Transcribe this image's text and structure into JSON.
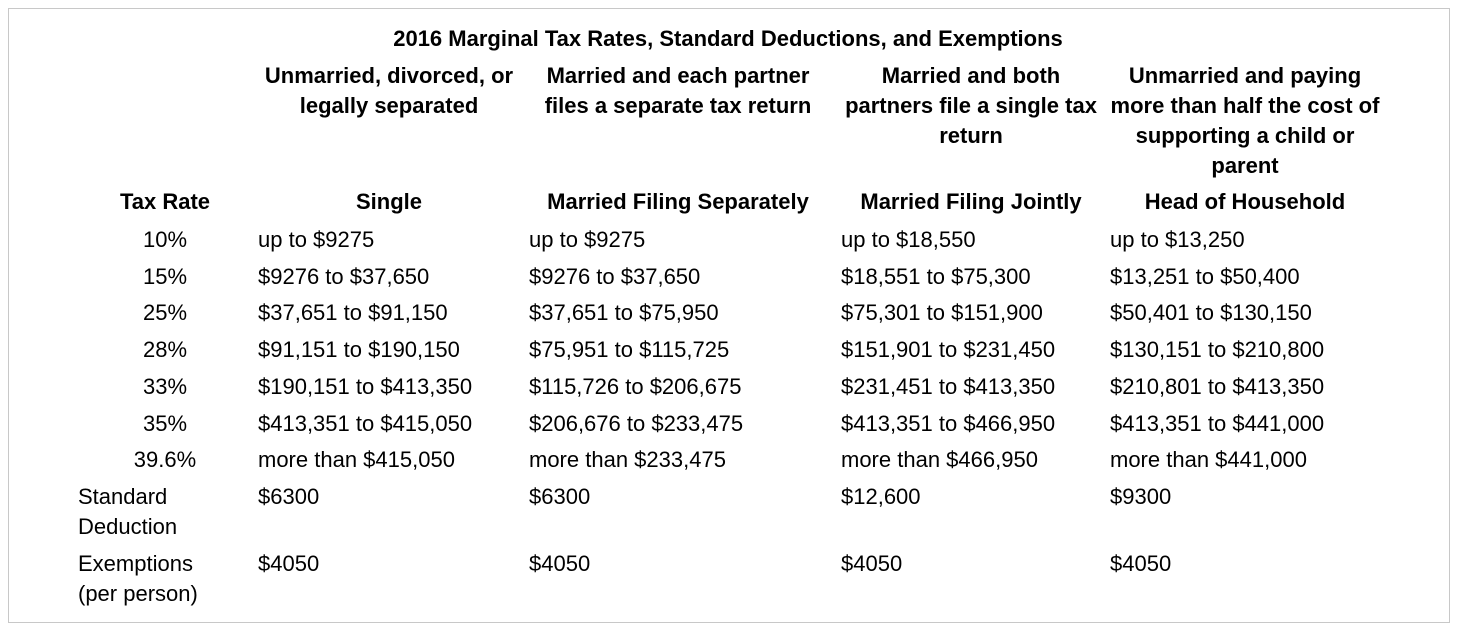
{
  "title": "2016 Marginal Tax Rates, Standard Deductions, and Exemptions",
  "columns": [
    {
      "description": "Unmarried, divorced, or legally separated",
      "label": "Single"
    },
    {
      "description": "Married and each partner files a separate tax return",
      "label": "Married Filing Separately"
    },
    {
      "description": "Married and both partners file a single tax return",
      "label": "Married Filing Jointly"
    },
    {
      "description": "Unmarried and paying more than half the cost of supporting a child or parent",
      "label": "Head of Household"
    }
  ],
  "rate_header": "Tax Rate",
  "rows": [
    {
      "rate": "10%",
      "values": [
        "up to $9275",
        "up to $9275",
        "up to $18,550",
        "up to $13,250"
      ]
    },
    {
      "rate": "15%",
      "values": [
        "$9276 to $37,650",
        "$9276 to $37,650",
        "$18,551 to $75,300",
        "$13,251 to $50,400"
      ]
    },
    {
      "rate": "25%",
      "values": [
        "$37,651 to $91,150",
        "$37,651 to $75,950",
        "$75,301 to $151,900",
        "$50,401 to $130,150"
      ]
    },
    {
      "rate": "28%",
      "values": [
        "$91,151 to $190,150",
        "$75,951 to $115,725",
        "$151,901 to $231,450",
        "$130,151 to $210,800"
      ]
    },
    {
      "rate": "33%",
      "values": [
        "$190,151 to $413,350",
        "$115,726 to $206,675",
        "$231,451 to $413,350",
        "$210,801 to $413,350"
      ]
    },
    {
      "rate": "35%",
      "values": [
        "$413,351 to $415,050",
        "$206,676 to $233,475",
        "$413,351 to $466,950",
        "$413,351 to $441,000"
      ]
    },
    {
      "rate": "39.6%",
      "values": [
        "more than $415,050",
        "more than $233,475",
        "more than $466,950",
        "more than $441,000"
      ]
    }
  ],
  "standard_deduction": {
    "label": "Standard Deduction",
    "values": [
      "$6300",
      "$6300",
      "$12,600",
      "$9300"
    ]
  },
  "exemptions": {
    "label": "Exemptions (per person)",
    "values": [
      "$4050",
      "$4050",
      "$4050",
      "$4050"
    ]
  }
}
